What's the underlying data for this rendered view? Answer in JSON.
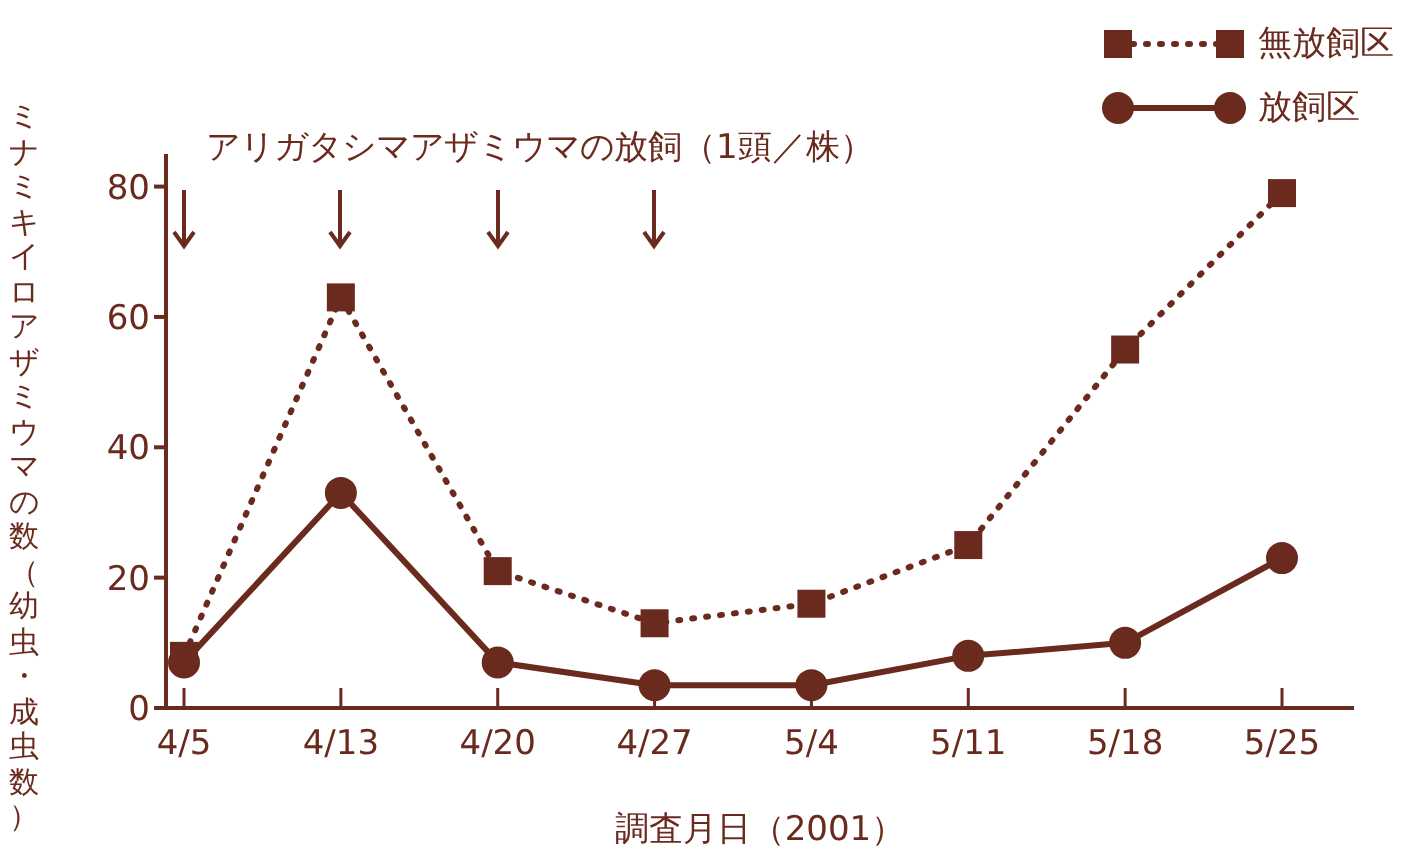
{
  "chart_data": {
    "type": "line",
    "title": "アリガタシマアザミウマの放飼（1頭／株）",
    "xlabel": "調査月日（2001）",
    "ylabel": "ミナミキイロアザミウマの数（幼虫・成虫数）",
    "categories": [
      "4/5",
      "4/13",
      "4/20",
      "4/27",
      "5/4",
      "5/11",
      "5/18",
      "5/25"
    ],
    "series": [
      {
        "name": "無放飼区",
        "color": "#6b2a1e",
        "marker": "square",
        "line_style": "dotted",
        "values": [
          8,
          63,
          21,
          13,
          16,
          25,
          55,
          79
        ]
      },
      {
        "name": "放飼区",
        "color": "#6b2a1e",
        "marker": "circle",
        "line_style": "solid",
        "values": [
          7,
          33,
          7,
          3.5,
          3.5,
          8,
          10,
          23
        ]
      }
    ],
    "ylim": [
      0,
      85
    ],
    "yticks": [
      0,
      20,
      40,
      60,
      80
    ],
    "grid": false,
    "legend": "top right"
  }
}
